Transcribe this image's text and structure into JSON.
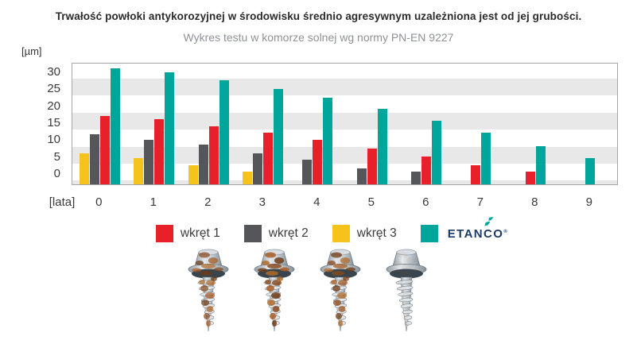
{
  "title": "Trwałość powłoki antykorozyjnej w środowisku średnio agresywnym uzależniona jest od jej grubości.",
  "subtitle": "Wykres testu w komorze solnej wg normy PN-EN 9227",
  "chart_data": {
    "type": "bar",
    "title": "Wykres testu w komorze solnej wg normy PN-EN 9227",
    "y_axis_label": "[µm]",
    "x_axis_label": "[lata]",
    "y_ticks": [
      30,
      25,
      20,
      15,
      10,
      5,
      0
    ],
    "ylim": [
      0,
      32
    ],
    "grid": "horizontal-stripes",
    "legend_position": "bottom",
    "categories": [
      "0",
      "1",
      "2",
      "3",
      "4",
      "5",
      "6",
      "7",
      "8",
      "9"
    ],
    "series": [
      {
        "name": "wkręt 3",
        "color": "#F6C31C",
        "values": [
          6,
          4.5,
          2.5,
          0.5,
          0,
          0,
          0,
          0,
          0,
          0
        ]
      },
      {
        "name": "wkręt 2",
        "color": "#55565A",
        "values": [
          11.5,
          10,
          8.5,
          6,
          4,
          1.5,
          0.5,
          0,
          0,
          0
        ]
      },
      {
        "name": "wkręt 1",
        "color": "#E8202A",
        "values": [
          17,
          16,
          14,
          12,
          10,
          7.5,
          5,
          2.5,
          0.5,
          0
        ]
      },
      {
        "name": "ETANCO",
        "color": "#00A69C",
        "values": [
          31,
          30,
          27.5,
          25,
          22.5,
          19,
          15.5,
          12,
          8,
          4.5
        ]
      }
    ]
  },
  "legend": {
    "items": [
      {
        "label": "wkręt 1",
        "color": "#E8202A",
        "is_logo": false
      },
      {
        "label": "wkręt 2",
        "color": "#55565A",
        "is_logo": false
      },
      {
        "label": "wkręt 3",
        "color": "#F6C31C",
        "is_logo": false
      },
      {
        "label": "ETANCO",
        "color": "#00A69C",
        "is_logo": true
      }
    ]
  },
  "brand": {
    "name": "ETANCO",
    "reg_mark": "®",
    "text_color": "#1C3A66",
    "icon_color": "#00A69C",
    "icon": "etanco-spark-icon"
  },
  "photos": [
    {
      "name": "screw-photo-1",
      "description": "corroded screw after test",
      "rust_level": 0.78
    },
    {
      "name": "screw-photo-2",
      "description": "heavily corroded screw after test",
      "rust_level": 0.9
    },
    {
      "name": "screw-photo-3",
      "description": "corroded screw after test",
      "rust_level": 0.82
    },
    {
      "name": "screw-photo-4",
      "description": "clean zinc coated screw after test",
      "rust_level": 0.06
    }
  ],
  "colors": {
    "background": "#FFFFFF",
    "stripe": "#E8E8E8",
    "plot_border": "#A6A6A6",
    "title_text": "#2B2B2B",
    "subtitle_text": "#8D9298",
    "axis_text": "#3A3A3A"
  }
}
